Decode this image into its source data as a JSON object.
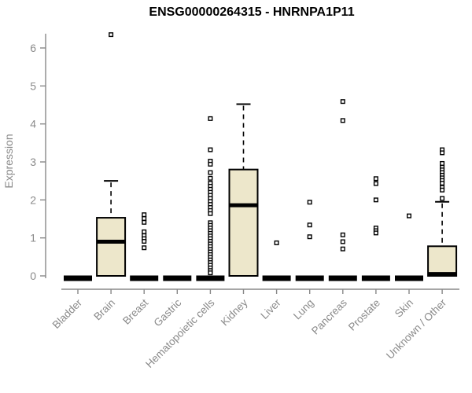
{
  "chart_data": {
    "type": "boxplot",
    "title": "ENSG00000264315 - HNRNPA1P11",
    "ylabel": "Expression",
    "ylim": [
      0,
      6.5
    ],
    "yticks": [
      0,
      1,
      2,
      3,
      4,
      5,
      6
    ],
    "grid": false,
    "legend": "none",
    "categories": [
      "Bladder",
      "Brain",
      "Breast",
      "Gastric",
      "Hematopoietic cells",
      "Kidney",
      "Liver",
      "Lung",
      "Pancreas",
      "Prostate",
      "Skin",
      "Unknown / Other"
    ],
    "boxes": [
      {
        "category": "Bladder",
        "q1": 0,
        "median": 0,
        "q3": 0,
        "whisker_low": 0,
        "whisker_high": 0,
        "outliers": []
      },
      {
        "category": "Brain",
        "q1": 0,
        "median": 0.9,
        "q3": 1.53,
        "whisker_low": 0,
        "whisker_high": 2.5,
        "outliers": [
          6.35
        ]
      },
      {
        "category": "Breast",
        "q1": 0,
        "median": 0,
        "q3": 0,
        "whisker_low": 0,
        "whisker_high": 0,
        "outliers": [
          1.61,
          1.51,
          1.41,
          1.16,
          1.06,
          0.98,
          0.91,
          0.74
        ]
      },
      {
        "category": "Gastric",
        "q1": 0,
        "median": 0,
        "q3": 0,
        "whisker_low": 0,
        "whisker_high": 0,
        "outliers": []
      },
      {
        "category": "Hematopoietic cells",
        "q1": 0,
        "median": 0,
        "q3": 0,
        "whisker_low": 0,
        "whisker_high": 0,
        "outliers": [
          4.14,
          3.32,
          3.02,
          2.94,
          2.72,
          2.57,
          2.44,
          2.36,
          2.28,
          2.2,
          2.12,
          2.04,
          1.96,
          1.88,
          1.8,
          1.72,
          1.64,
          1.4,
          1.33,
          1.26,
          1.19,
          1.12,
          1.05,
          0.98,
          0.91,
          0.84,
          0.77,
          0.7,
          0.63,
          0.56,
          0.49,
          0.42,
          0.35,
          0.28,
          0.21,
          0.14,
          0.08
        ]
      },
      {
        "category": "Kidney",
        "q1": 0,
        "median": 1.86,
        "q3": 2.8,
        "whisker_low": 0,
        "whisker_high": 4.52,
        "outliers": []
      },
      {
        "category": "Liver",
        "q1": 0,
        "median": 0,
        "q3": 0,
        "whisker_low": 0,
        "whisker_high": 0,
        "outliers": [
          0.87
        ]
      },
      {
        "category": "Lung",
        "q1": 0,
        "median": 0,
        "q3": 0,
        "whisker_low": 0,
        "whisker_high": 0,
        "outliers": [
          1.94,
          1.34,
          1.03
        ]
      },
      {
        "category": "Pancreas",
        "q1": 0,
        "median": 0,
        "q3": 0,
        "whisker_low": 0,
        "whisker_high": 0,
        "outliers": [
          4.59,
          4.09,
          1.08,
          0.9,
          0.71
        ]
      },
      {
        "category": "Prostate",
        "q1": 0,
        "median": 0,
        "q3": 0,
        "whisker_low": 0,
        "whisker_high": 0,
        "outliers": [
          2.56,
          2.43,
          2.0,
          1.26,
          1.19,
          1.13
        ]
      },
      {
        "category": "Skin",
        "q1": 0,
        "median": 0,
        "q3": 0,
        "whisker_low": 0,
        "whisker_high": 0,
        "outliers": [
          1.58
        ]
      },
      {
        "category": "Unknown / Other",
        "q1": 0,
        "median": 0.05,
        "q3": 0.78,
        "whisker_low": 0,
        "whisker_high": 1.95,
        "outliers": [
          3.32,
          3.24,
          2.96,
          2.86,
          2.79,
          2.72,
          2.65,
          2.58,
          2.51,
          2.44,
          2.33,
          2.26,
          2.04
        ]
      }
    ],
    "colors": {
      "box_fill": "#EDE7CB",
      "box_line": "#000000",
      "axis": "#888888",
      "tick_label": "#8a8a8a",
      "title": "#000000",
      "background": "#ffffff"
    }
  }
}
